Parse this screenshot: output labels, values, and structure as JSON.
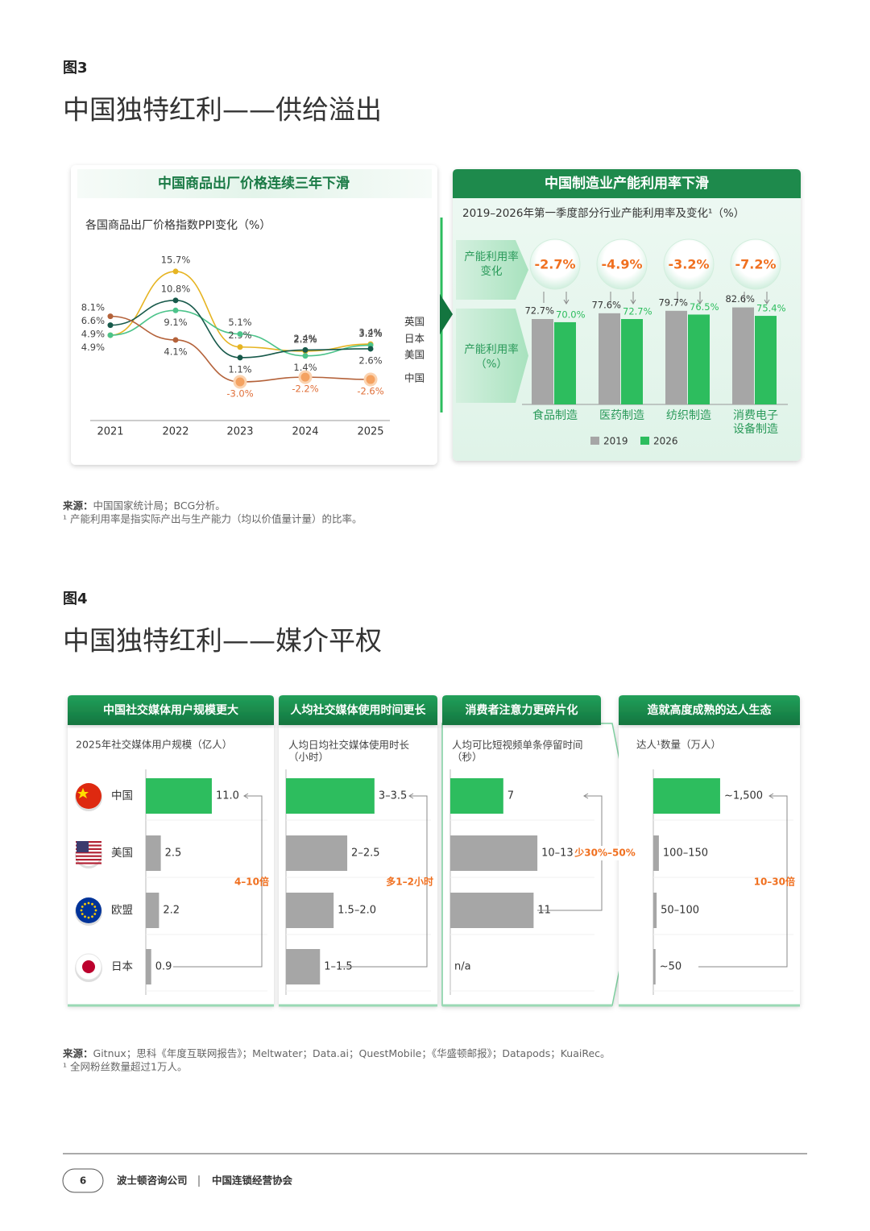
{
  "fig3": {
    "label": "图3",
    "title": "中国独特红利——供给溢出",
    "left": {
      "header": "中国商品出厂价格连续三年下滑",
      "subtitle": "各国商品出厂价格指数PPI变化（%）",
      "categories": [
        "2021",
        "2022",
        "2023",
        "2024",
        "2025"
      ],
      "series": [
        {
          "name": "英国",
          "color": "#e6b422",
          "values": [
            4.9,
            15.7,
            2.9,
            2.2,
            3.4
          ],
          "value_labels": [
            "4.9%",
            "15.7%",
            "2.9%",
            "2.2%",
            "3.4%"
          ]
        },
        {
          "name": "日本",
          "color": "#4cc38a",
          "values": [
            4.9,
            9.1,
            5.1,
            1.4,
            3.2
          ],
          "value_labels": [
            "4.9%",
            "9.1%",
            "5.1%",
            "1.4%",
            "3.2%"
          ]
        },
        {
          "name": "美国",
          "color": "#17594a",
          "values": [
            6.6,
            10.8,
            1.1,
            2.4,
            2.6
          ],
          "value_labels": [
            "6.6%",
            "10.8%",
            "1.1%",
            "2.4%",
            "2.6%"
          ]
        },
        {
          "name": "中国",
          "color": "#b4623a",
          "values": [
            8.1,
            4.1,
            -3.0,
            -2.2,
            -2.6
          ],
          "value_labels": [
            "8.1%",
            "4.1%",
            "-3.0%",
            "-2.2%",
            "-2.6%"
          ]
        }
      ]
    },
    "right": {
      "header": "中国制造业产能利用率下滑",
      "subtitle": "2019–2026年第一季度部分行业产能利用率及变化¹（%）",
      "row_labels": [
        "产能利用率变化",
        "产能利用率（%）"
      ],
      "categories": [
        "食品制造",
        "医药制造",
        "纺织制造",
        "消费电子设备制造"
      ],
      "changes": [
        -2.7,
        -4.9,
        -3.2,
        -7.2
      ],
      "change_labels": [
        "-2.7%",
        "-4.9%",
        "-3.2%",
        "-7.2%"
      ],
      "series": [
        {
          "name": "2019",
          "color": "#a6a6a6",
          "values": [
            72.7,
            77.6,
            79.7,
            82.6
          ],
          "value_labels": [
            "72.7%",
            "77.6%",
            "79.7%",
            "82.6%"
          ]
        },
        {
          "name": "2026",
          "color": "#2dbd5e",
          "values": [
            70.0,
            72.7,
            76.5,
            75.4
          ],
          "value_labels": [
            "70.0%",
            "72.7%",
            "76.5%",
            "75.4%"
          ]
        }
      ]
    },
    "source_label": "来源：",
    "source": "中国国家统计局；BCG分析。",
    "note": "¹ 产能利用率是指实际产出与生产能力（均以价值量计量）的比率。"
  },
  "fig4": {
    "label": "图4",
    "title": "中国独特红利——媒介平权",
    "countries": [
      "中国",
      "美国",
      "欧盟",
      "日本"
    ],
    "panels": [
      {
        "header": "中国社交媒体用户规模更大",
        "subtitle": "2025年社交媒体用户规模（亿人）",
        "values": [
          11.0,
          2.5,
          2.2,
          0.9
        ],
        "value_labels": [
          "11.0",
          "2.5",
          "2.2",
          "0.9"
        ],
        "callout": "4–10倍"
      },
      {
        "header": "人均社交媒体使用时间更长",
        "subtitle": "人均日均社交媒体使用时长（小时）",
        "values": [
          [
            3,
            3.5
          ],
          [
            2,
            2.5
          ],
          [
            1.5,
            2.0
          ],
          [
            1,
            1.5
          ]
        ],
        "value_labels": [
          "3–3.5",
          "2–2.5",
          "1.5–2.0",
          "1–1.5"
        ],
        "callout": "多1–2小时"
      },
      {
        "header": "消费者注意力更碎片化",
        "subtitle": "人均可比短视频单条停留时间（秒）",
        "values": [
          7,
          [
            10,
            13
          ],
          11,
          null
        ],
        "value_labels": [
          "7",
          "10–13",
          "11",
          "n/a"
        ],
        "callout": "少30%–50%"
      },
      {
        "header": "造就高度成熟的达人生态",
        "subtitle": "达人¹数量（万人）",
        "values": [
          1500,
          [
            100,
            150
          ],
          [
            50,
            100
          ],
          50
        ],
        "value_labels": [
          "~1,500",
          "100–150",
          "50–100",
          "~50"
        ],
        "callout": "10–30倍"
      }
    ],
    "source_label": "来源：",
    "source": "Gitnux；思科《年度互联网报告》；Meltwater；Data.ai；QuestMobile；《华盛顿邮报》；Datapods；KuaiRec。",
    "note": "¹ 全网粉丝数量超过1万人。"
  },
  "footer": {
    "page": 6,
    "org1": "波士顿咨询公司",
    "org2": "中国连锁经营协会"
  }
}
